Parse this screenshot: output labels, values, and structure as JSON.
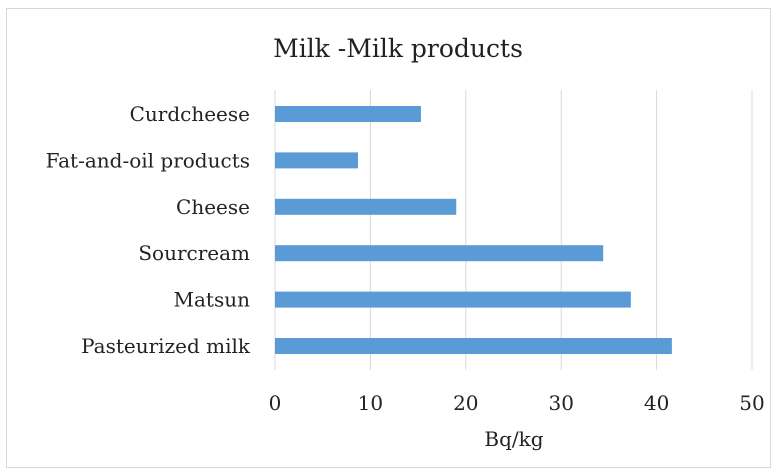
{
  "chart_data": {
    "type": "bar",
    "orientation": "horizontal",
    "title": "Milk -Milk products",
    "xlabel": "Bq/kg",
    "ylabel": "",
    "categories": [
      "Curdcheese",
      "Fat-and-oil products",
      "Cheese",
      "Sourcream",
      "Matsun",
      "Pasteurized milk"
    ],
    "values": [
      15.3,
      8.7,
      19.0,
      34.4,
      37.3,
      41.6
    ],
    "xlim": [
      0,
      50
    ],
    "xticks": [
      "0",
      "10",
      "20",
      "30",
      "40",
      "50"
    ],
    "grid": true,
    "legend": "none",
    "bar_color": "#5b9bd5",
    "grid_color": "#d9d9d9"
  }
}
